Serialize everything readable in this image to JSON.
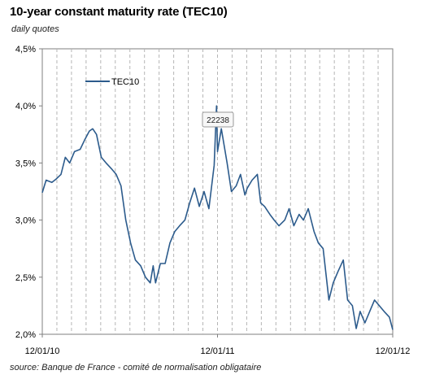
{
  "title": "10-year constant maturity rate (TEC10)",
  "subtitle": "daily quotes",
  "source": "source: Banque de France - comité de normalisation obligataire",
  "tooltip": "22238",
  "colors": {
    "line": "#2c5b8c",
    "grid": "#b5b5b5",
    "axis": "#7f7f7f"
  },
  "chart_data": {
    "type": "line",
    "title": "10-year constant maturity rate (TEC10)",
    "xlabel": "",
    "ylabel": "",
    "ylim": [
      2.0,
      4.5
    ],
    "yticks": [
      2.0,
      2.5,
      3.0,
      3.5,
      4.0,
      4.5
    ],
    "ytick_labels": [
      "2,0%",
      "2,5%",
      "3,0%",
      "3,5%",
      "4,0%",
      "4,5%"
    ],
    "xlim": [
      "2010-01-12",
      "2012-01-12"
    ],
    "xtick_labels": [
      "12/01/10",
      "12/01/11",
      "12/01/12"
    ],
    "grid": "vertical dashed monthly",
    "legend": "top-left",
    "series": [
      {
        "name": "TEC10",
        "x": [
          "2010-01-12",
          "2010-01-20",
          "2010-02-01",
          "2010-02-10",
          "2010-02-20",
          "2010-03-01",
          "2010-03-10",
          "2010-03-20",
          "2010-04-01",
          "2010-04-10",
          "2010-04-20",
          "2010-04-27",
          "2010-05-05",
          "2010-05-15",
          "2010-05-25",
          "2010-06-05",
          "2010-06-15",
          "2010-06-25",
          "2010-07-05",
          "2010-07-15",
          "2010-07-25",
          "2010-08-05",
          "2010-08-15",
          "2010-08-25",
          "2010-08-31",
          "2010-09-05",
          "2010-09-15",
          "2010-09-25",
          "2010-10-05",
          "2010-10-15",
          "2010-10-25",
          "2010-11-05",
          "2010-11-15",
          "2010-11-25",
          "2010-12-05",
          "2010-12-15",
          "2010-12-25",
          "2011-01-05",
          "2011-01-10",
          "2011-01-12",
          "2011-01-20",
          "2011-02-01",
          "2011-02-10",
          "2011-02-20",
          "2011-03-01",
          "2011-03-10",
          "2011-03-15",
          "2011-03-25",
          "2011-04-05",
          "2011-04-12",
          "2011-04-20",
          "2011-05-01",
          "2011-05-10",
          "2011-05-20",
          "2011-06-01",
          "2011-06-10",
          "2011-06-20",
          "2011-07-01",
          "2011-07-10",
          "2011-07-20",
          "2011-08-01",
          "2011-08-10",
          "2011-08-20",
          "2011-09-01",
          "2011-09-10",
          "2011-09-20",
          "2011-10-01",
          "2011-10-10",
          "2011-10-20",
          "2011-10-28",
          "2011-11-05",
          "2011-11-15",
          "2011-11-25",
          "2011-12-05",
          "2011-12-15",
          "2011-12-25",
          "2012-01-05",
          "2012-01-12"
        ],
        "values": [
          3.24,
          3.35,
          3.33,
          3.36,
          3.4,
          3.55,
          3.5,
          3.6,
          3.62,
          3.7,
          3.78,
          3.8,
          3.75,
          3.55,
          3.5,
          3.45,
          3.4,
          3.3,
          3.0,
          2.8,
          2.65,
          2.6,
          2.5,
          2.45,
          2.6,
          2.45,
          2.62,
          2.62,
          2.8,
          2.9,
          2.95,
          3.0,
          3.15,
          3.28,
          3.12,
          3.25,
          3.1,
          3.48,
          4.0,
          3.6,
          3.8,
          3.5,
          3.25,
          3.3,
          3.4,
          3.22,
          3.28,
          3.35,
          3.4,
          3.15,
          3.12,
          3.05,
          3.0,
          2.95,
          3.0,
          3.1,
          2.95,
          3.05,
          3.0,
          3.1,
          2.9,
          2.8,
          2.75,
          2.3,
          2.45,
          2.55,
          2.65,
          2.3,
          2.25,
          2.05,
          2.2,
          2.1,
          2.2,
          2.3,
          2.25,
          2.2,
          2.15,
          2.04
        ]
      }
    ]
  }
}
